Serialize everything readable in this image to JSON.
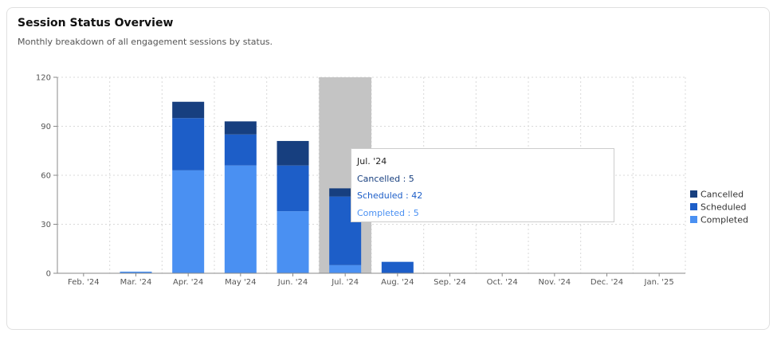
{
  "header": {
    "title": "Session Status Overview",
    "subtitle": "Monthly breakdown of all engagement sessions by status."
  },
  "tooltip": {
    "title": "Jul. '24",
    "lines": [
      {
        "label": "Cancelled : 5",
        "color": "#173f7f"
      },
      {
        "label": "Scheduled : 42",
        "color": "#1d5ec8"
      },
      {
        "label": "Completed : 5",
        "color": "#4a90f2"
      }
    ]
  },
  "chart_data": {
    "type": "bar",
    "stacked": true,
    "title": "Session Status Overview",
    "subtitle": "Monthly breakdown of all engagement sessions by status.",
    "categories": [
      "Feb. '24",
      "Mar. '24",
      "Apr. '24",
      "May '24",
      "Jun. '24",
      "Jul. '24",
      "Aug. '24",
      "Sep. '24",
      "Oct. '24",
      "Nov. '24",
      "Dec. '24",
      "Jan. '25"
    ],
    "series": [
      {
        "name": "Completed",
        "color": "#4a90f2",
        "values": [
          0,
          1,
          63,
          66,
          38,
          5,
          0,
          0,
          0,
          0,
          0,
          0
        ]
      },
      {
        "name": "Scheduled",
        "color": "#1d5ec8",
        "values": [
          0,
          0,
          32,
          19,
          28,
          42,
          7,
          0,
          0,
          0,
          0,
          0
        ]
      },
      {
        "name": "Cancelled",
        "color": "#173f7f",
        "values": [
          0,
          0,
          10,
          8,
          15,
          5,
          0,
          0,
          0,
          0,
          0,
          0
        ]
      }
    ],
    "yticks": [
      0,
      30,
      60,
      90,
      120
    ],
    "ylim": [
      0,
      120
    ],
    "grid": true,
    "legend": "right",
    "highlighted_category": "Jul. '24"
  }
}
